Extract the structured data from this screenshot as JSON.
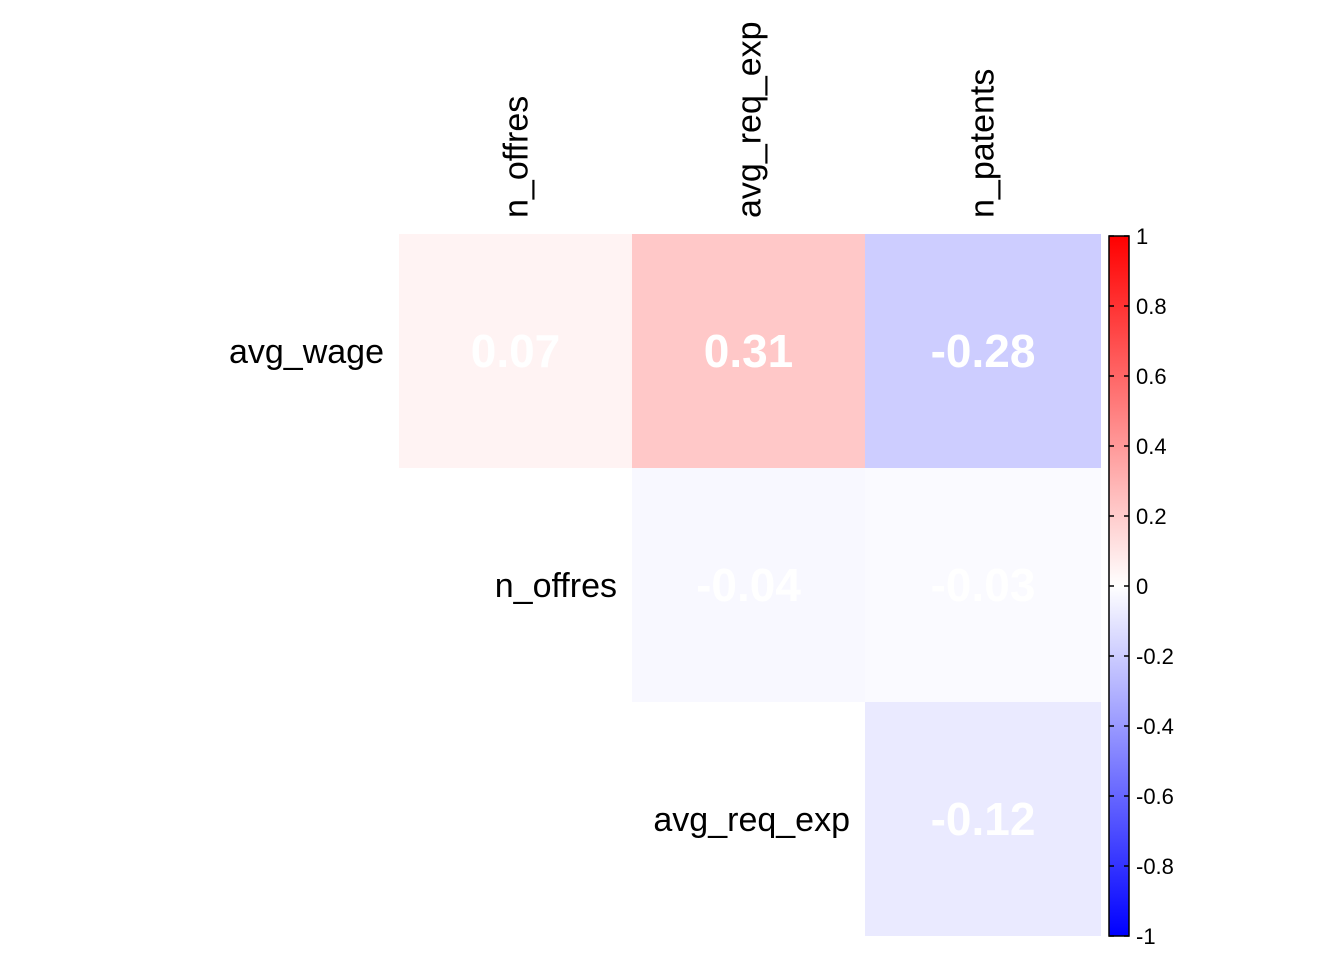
{
  "chart_data": {
    "type": "heatmap",
    "title": "",
    "rows": [
      "avg_wage",
      "n_offres",
      "avg_req_exp"
    ],
    "columns": [
      "n_offres",
      "avg_req_exp",
      "n_patents"
    ],
    "cells": [
      {
        "row": 0,
        "col": 0,
        "value": 0.07,
        "label": "0.07"
      },
      {
        "row": 0,
        "col": 1,
        "value": 0.31,
        "label": "0.31"
      },
      {
        "row": 0,
        "col": 2,
        "value": -0.28,
        "label": "-0.28"
      },
      {
        "row": 1,
        "col": 1,
        "value": -0.04,
        "label": "-0.04"
      },
      {
        "row": 1,
        "col": 2,
        "value": -0.03,
        "label": "-0.03"
      },
      {
        "row": 2,
        "col": 2,
        "value": -0.12,
        "label": "-0.12"
      }
    ],
    "color_scale": {
      "range": [
        -1,
        1
      ],
      "low_color": "#0000ff",
      "mid_color": "#ffffff",
      "high_color": "#ff0000",
      "ticks": [
        "1",
        "0.8",
        "0.6",
        "0.4",
        "0.2",
        "0",
        "-0.2",
        "-0.4",
        "-0.6",
        "-0.8",
        "-1"
      ],
      "tick_values": [
        1,
        0.8,
        0.6,
        0.4,
        0.2,
        0,
        -0.2,
        -0.4,
        -0.6,
        -0.8,
        -1
      ]
    },
    "legend_placement": "right"
  }
}
